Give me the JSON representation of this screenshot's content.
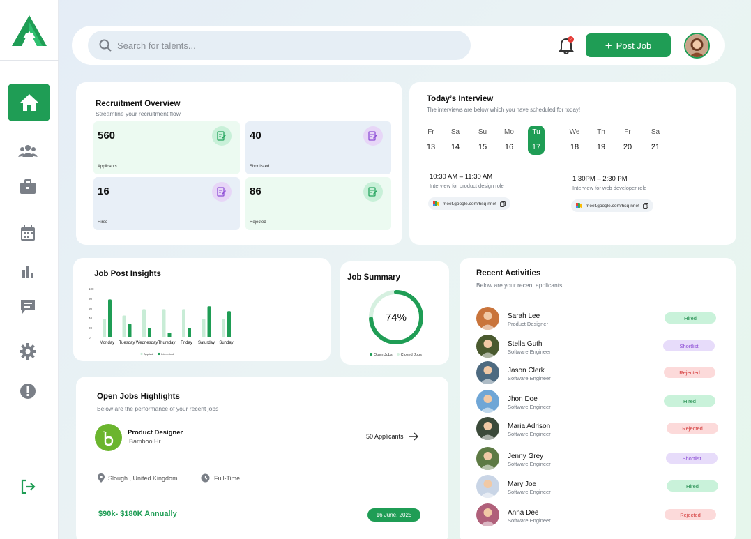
{
  "search": {
    "placeholder": "Search for talents..."
  },
  "header": {
    "post_job_label": "Post Job",
    "notification_badge": "10"
  },
  "recruitment": {
    "title": "Recruitment Overview",
    "subtitle": "Streamline your recruitment flow",
    "stats": [
      {
        "value": "560",
        "label": "Applicants",
        "bg": "#ecfaf1",
        "icon_bg": "#c8f0d8",
        "icon_color": "#27a55f"
      },
      {
        "value": "40",
        "label": "Shortlisted",
        "bg": "#e8eff7",
        "icon_bg": "#e7d6f7",
        "icon_color": "#8e4fd6"
      },
      {
        "value": "16",
        "label": "Hired",
        "bg": "#e8eff7",
        "icon_bg": "#e7d6f7",
        "icon_color": "#8e4fd6"
      },
      {
        "value": "86",
        "label": "Rejected",
        "bg": "#ecfaf1",
        "icon_bg": "#c8f0d8",
        "icon_color": "#27a55f"
      }
    ]
  },
  "interview": {
    "title": "Today’s Interview",
    "subtitle": "The interviews  are below which you have scheduled for today!",
    "days": [
      {
        "name": "Fr",
        "date": "13"
      },
      {
        "name": "Sa",
        "date": "14"
      },
      {
        "name": "Su",
        "date": "15"
      },
      {
        "name": "Mo",
        "date": "16"
      },
      {
        "name": "Tu",
        "date": "17",
        "active": true
      },
      {
        "name": "We",
        "date": "18"
      },
      {
        "name": "Th",
        "date": "19"
      },
      {
        "name": "Fr",
        "date": "20"
      },
      {
        "name": "Sa",
        "date": "21"
      }
    ],
    "slots": [
      {
        "time": "10:30 AM – 11:30 AM",
        "role": "Interview for product design role",
        "link": "meet.google.com/hsq-nnet"
      },
      {
        "time": "1:30PM – 2:30 PM",
        "role": "Interview for web developer role",
        "link": "meet.google.com/hsq-nnet"
      }
    ]
  },
  "insights": {
    "title": "Job Post Insights",
    "chart_data": {
      "type": "bar",
      "categories": [
        "Monday",
        "Tuesday",
        "Wednesday",
        "Thursday",
        "Friday",
        "Saturday",
        "Sunday"
      ],
      "series": [
        {
          "name": "Applied",
          "values": [
            38,
            45,
            58,
            58,
            58,
            38,
            38
          ]
        },
        {
          "name": "Interested",
          "values": [
            78,
            28,
            20,
            10,
            20,
            64,
            54
          ]
        }
      ],
      "ylim": [
        0,
        100
      ],
      "yticks": [
        "0",
        "20",
        "40",
        "60",
        "80",
        "100"
      ],
      "colors": {
        "Applied": "#c8ecd6",
        "Interested": "#1f9d55"
      },
      "legend": "bottom",
      "grid": false
    }
  },
  "summary": {
    "title": "Job Summary",
    "percent": 74,
    "percent_label": "74%",
    "legend": [
      "Open Jobs",
      "Closed Jobs"
    ]
  },
  "activities": {
    "title": "Recent Activities",
    "subtitle": "Below are your recent applicants",
    "items": [
      {
        "name": "Sarah Lee",
        "role": "Product Designer",
        "status": "Hired",
        "avatar": "#c9743b"
      },
      {
        "name": "Stella Guth",
        "role": "Software Engineer",
        "status": "Shortlist",
        "avatar": "#4a5a2f"
      },
      {
        "name": "Jason Clerk",
        "role": "Software Engineer",
        "status": "Rejected",
        "avatar": "#4d6a80"
      },
      {
        "name": "Jhon Doe",
        "role": "Software Engineer",
        "status": "Hired",
        "avatar": "#6fa6d6"
      },
      {
        "name": "Maria Adrison",
        "role": "Software Engineer",
        "status": "Rejected",
        "avatar": "#3b4a3a"
      },
      {
        "name": "Jenny Grey",
        "role": "Software Engineer",
        "status": "Shortlist",
        "avatar": "#5d7a44"
      },
      {
        "name": "Mary Joe",
        "role": "Software Engineer",
        "status": "Hired",
        "avatar": "#c9d5e6"
      },
      {
        "name": "Anna Dee",
        "role": "Software Engineer",
        "status": "Rejected",
        "avatar": "#b0607a"
      }
    ]
  },
  "status_colors": {
    "Hired": {
      "bg": "#c9f2da",
      "fg": "#1f8a4c"
    },
    "Shortlist": {
      "bg": "#e7dcfa",
      "fg": "#8e4fd6"
    },
    "Rejected": {
      "bg": "#fcdada",
      "fg": "#d33a3a"
    }
  },
  "highlights": {
    "title": "Open Jobs Highlights",
    "subtitle": "Below are the performance of your recent jobs",
    "job_title": "Product Designer",
    "company": "Bamboo Hr",
    "applicants": "50 Applicants",
    "location": "Slough , United Kingdom",
    "type": "Full-Time",
    "salary": "$90k- $180K Annually",
    "date": "16 June,  2025"
  }
}
